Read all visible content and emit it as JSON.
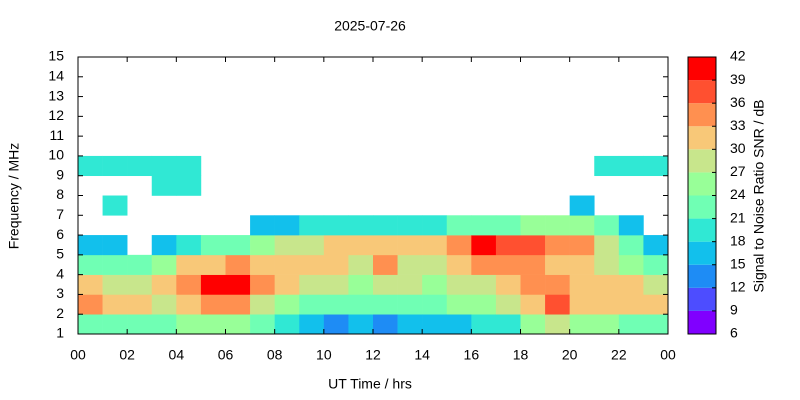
{
  "chart_data": {
    "type": "heatmap",
    "title": "2025-07-26",
    "xlabel": "UT Time / hrs",
    "ylabel": "Frequency / MHz",
    "xlim": [
      0,
      24
    ],
    "xticks": [
      {
        "value": 0,
        "label": "00"
      },
      {
        "value": 2,
        "label": "02"
      },
      {
        "value": 4,
        "label": "04"
      },
      {
        "value": 6,
        "label": "06"
      },
      {
        "value": 8,
        "label": "08"
      },
      10,
      12,
      14,
      16,
      18,
      20,
      22,
      {
        "value": 24,
        "label": "00"
      }
    ],
    "ylim": [
      1,
      15
    ],
    "yticks": [
      1,
      2,
      3,
      4,
      5,
      6,
      7,
      8,
      9,
      10,
      11,
      12,
      13,
      14,
      15
    ],
    "xbins": [
      0,
      1,
      2,
      3,
      4,
      5,
      6,
      7,
      8,
      9,
      10,
      11,
      12,
      13,
      14,
      15,
      16,
      17,
      18,
      19,
      20,
      21,
      22,
      23,
      24
    ],
    "ybins": [
      1,
      2,
      3,
      4,
      5,
      6,
      7,
      8,
      9,
      10,
      11,
      12,
      13,
      14,
      15
    ],
    "values": [
      [
        22,
        33,
        30,
        21,
        15,
        null,
        null,
        null,
        20,
        null,
        null,
        null,
        null,
        null
      ],
      [
        21,
        30,
        27,
        21,
        15,
        null,
        18,
        null,
        20,
        null,
        null,
        null,
        null,
        null
      ],
      [
        21,
        30,
        27,
        21,
        null,
        null,
        null,
        null,
        18,
        null,
        null,
        null,
        null,
        null
      ],
      [
        21,
        27,
        30,
        24,
        15,
        null,
        null,
        18,
        20,
        null,
        null,
        null,
        null,
        null
      ],
      [
        24,
        30,
        33,
        30,
        18,
        null,
        null,
        18,
        18,
        null,
        null,
        null,
        null,
        null
      ],
      [
        24,
        33,
        39,
        30,
        21,
        null,
        null,
        null,
        null,
        null,
        null,
        null,
        null,
        null
      ],
      [
        24,
        33,
        39,
        33,
        21,
        null,
        null,
        null,
        null,
        null,
        null,
        null,
        null,
        null
      ],
      [
        21,
        27,
        33,
        30,
        24,
        15,
        null,
        null,
        null,
        null,
        null,
        null,
        null,
        null
      ],
      [
        18,
        24,
        30,
        30,
        27,
        15,
        null,
        null,
        null,
        null,
        null,
        null,
        null,
        null
      ],
      [
        15,
        21,
        27,
        30,
        27,
        18,
        null,
        null,
        null,
        null,
        null,
        null,
        null,
        null
      ],
      [
        12,
        21,
        27,
        30,
        30,
        18,
        null,
        null,
        null,
        null,
        null,
        null,
        null,
        null
      ],
      [
        15,
        21,
        24,
        27,
        30,
        18,
        null,
        null,
        null,
        null,
        null,
        null,
        null,
        null
      ],
      [
        12,
        21,
        27,
        33,
        30,
        18,
        null,
        null,
        null,
        null,
        null,
        null,
        null,
        null
      ],
      [
        15,
        21,
        27,
        27,
        30,
        18,
        null,
        null,
        null,
        null,
        null,
        null,
        null,
        null
      ],
      [
        15,
        21,
        24,
        27,
        30,
        18,
        null,
        null,
        null,
        null,
        null,
        null,
        null,
        null
      ],
      [
        15,
        24,
        27,
        30,
        33,
        21,
        null,
        null,
        null,
        null,
        null,
        null,
        null,
        null
      ],
      [
        18,
        24,
        27,
        33,
        39,
        21,
        null,
        null,
        null,
        null,
        null,
        null,
        null,
        null
      ],
      [
        18,
        27,
        30,
        33,
        36,
        21,
        null,
        null,
        null,
        null,
        null,
        null,
        null,
        null
      ],
      [
        24,
        30,
        33,
        33,
        36,
        24,
        null,
        null,
        null,
        null,
        null,
        null,
        null,
        null
      ],
      [
        27,
        36,
        33,
        30,
        33,
        24,
        null,
        null,
        null,
        null,
        null,
        null,
        null,
        null
      ],
      [
        24,
        30,
        30,
        30,
        33,
        24,
        15,
        null,
        null,
        null,
        null,
        null,
        null,
        null
      ],
      [
        24,
        30,
        30,
        27,
        27,
        21,
        null,
        null,
        18,
        null,
        null,
        null,
        null,
        null
      ],
      [
        21,
        30,
        30,
        24,
        21,
        15,
        null,
        null,
        18,
        null,
        null,
        null,
        null,
        null
      ],
      [
        21,
        30,
        27,
        21,
        15,
        null,
        null,
        null,
        18,
        null,
        null,
        null,
        null,
        null
      ]
    ],
    "colorbar": {
      "label": "Signal to Noise Ratio SNR / dB",
      "levels": [
        6,
        9,
        12,
        15,
        18,
        21,
        24,
        27,
        30,
        33,
        36,
        39,
        42
      ],
      "colors": [
        "#8000ff",
        "#4d4dff",
        "#1e8cf5",
        "#12c0ec",
        "#30e8d4",
        "#70ffb4",
        "#98ff98",
        "#c8e68c",
        "#f8c878",
        "#ff9050",
        "#ff5030",
        "#ff0000"
      ]
    }
  }
}
